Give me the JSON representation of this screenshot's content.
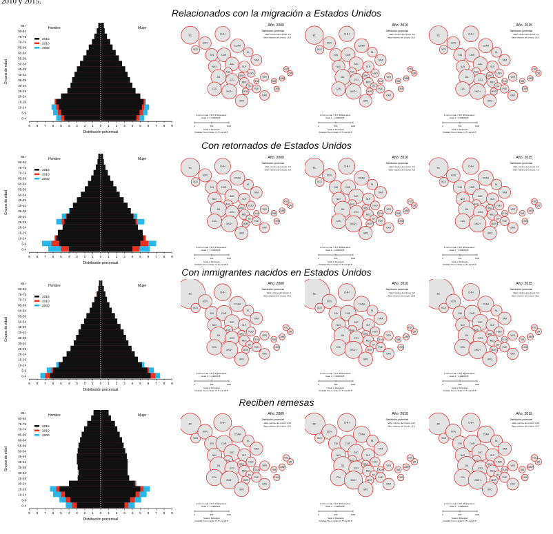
{
  "page": {
    "top_text": "2010 y 2015."
  },
  "sections": [
    {
      "title": "Relacionados con la migración a Estados Unidos"
    },
    {
      "title": "Con retornados de Estados Unidos"
    },
    {
      "title": "Con inmigrantes nacidos en Estados Unidos"
    },
    {
      "title": "Reciben remesas"
    }
  ],
  "pyramid": {
    "hombre": "Hombre",
    "mujer": "Mujer",
    "ylabel": "Grupos de edad",
    "xlabel": "Distribución porcentual",
    "ages": [
      "0-4",
      "5-9",
      "10-14",
      "15-19",
      "20-24",
      "25-29",
      "30-34",
      "35-39",
      "40-44",
      "45-49",
      "50-54",
      "55-59",
      "60-64",
      "65-69",
      "70-74",
      "75-79",
      "80-84",
      "85+"
    ],
    "xticks": [
      "9",
      "8",
      "7",
      "6",
      "5",
      "4",
      "3",
      "2",
      "1",
      "0",
      "1",
      "2",
      "3",
      "4",
      "5",
      "6",
      "7",
      "8",
      "9"
    ],
    "legend": [
      {
        "name": "2015",
        "color": "#111111"
      },
      {
        "name": "2010",
        "color": "#e8321f"
      },
      {
        "name": "2000",
        "color": "#29b6e8"
      }
    ]
  },
  "chart_data": [
    {
      "type": "bar",
      "title": "Relacionados con la migración a Estados Unidos",
      "categories": [
        "0-4",
        "5-9",
        "10-14",
        "15-19",
        "20-24",
        "25-29",
        "30-34",
        "35-39",
        "40-44",
        "45-49",
        "50-54",
        "55-59",
        "60-64",
        "65-69",
        "70-74",
        "75-79",
        "80-84",
        "85+"
      ],
      "series": [
        {
          "name": "2015",
          "men": [
            4.6,
            5.0,
            5.3,
            5.6,
            5.0,
            4.2,
            3.8,
            3.6,
            3.3,
            3.0,
            2.6,
            2.2,
            1.8,
            1.5,
            1.1,
            0.8,
            0.5,
            0.3
          ],
          "women": [
            4.5,
            4.9,
            5.2,
            5.4,
            5.0,
            4.4,
            4.0,
            3.7,
            3.4,
            3.1,
            2.7,
            2.3,
            1.9,
            1.5,
            1.2,
            0.8,
            0.5,
            0.4
          ]
        },
        {
          "name": "2010",
          "men": [
            5.0,
            5.4,
            5.6,
            5.8,
            4.9,
            4.0,
            3.6,
            3.4,
            3.1,
            2.8,
            2.4,
            2.0,
            1.6,
            1.3,
            1.0,
            0.7,
            0.4,
            0.3
          ],
          "women": [
            4.9,
            5.3,
            5.5,
            5.6,
            5.0,
            4.3,
            3.8,
            3.5,
            3.2,
            2.9,
            2.5,
            2.1,
            1.7,
            1.3,
            1.0,
            0.7,
            0.5,
            0.3
          ]
        },
        {
          "name": "2000",
          "men": [
            5.6,
            6.0,
            6.2,
            5.8,
            4.6,
            3.6,
            3.2,
            3.0,
            2.7,
            2.4,
            2.1,
            1.7,
            1.4,
            1.1,
            0.8,
            0.6,
            0.4,
            0.2
          ],
          "women": [
            5.5,
            5.9,
            6.1,
            5.7,
            4.8,
            3.9,
            3.4,
            3.1,
            2.8,
            2.5,
            2.1,
            1.8,
            1.4,
            1.1,
            0.9,
            0.6,
            0.4,
            0.3
          ]
        }
      ]
    },
    {
      "type": "bar",
      "title": "Con retornados de Estados Unidos",
      "categories": [
        "0-4",
        "5-9",
        "10-14",
        "15-19",
        "20-24",
        "25-29",
        "30-34",
        "35-39",
        "40-44",
        "45-49",
        "50-54",
        "55-59",
        "60-64",
        "65-69",
        "70-74",
        "75-79",
        "80-84",
        "85+"
      ],
      "series": [
        {
          "name": "2015",
          "men": [
            4.0,
            5.2,
            5.6,
            5.4,
            4.8,
            4.6,
            4.3,
            3.9,
            3.5,
            3.0,
            2.5,
            2.0,
            1.6,
            1.2,
            0.9,
            0.6,
            0.4,
            0.3
          ],
          "women": [
            4.0,
            5.0,
            5.4,
            5.3,
            4.7,
            4.4,
            4.1,
            3.8,
            3.4,
            2.9,
            2.4,
            2.0,
            1.6,
            1.2,
            0.9,
            0.6,
            0.4,
            0.3
          ]
        },
        {
          "name": "2010",
          "men": [
            5.0,
            6.2,
            5.8,
            5.2,
            4.6,
            4.9,
            4.4,
            3.8,
            3.3,
            2.8,
            2.3,
            1.9,
            1.5,
            1.1,
            0.8,
            0.6,
            0.4,
            0.2
          ],
          "women": [
            4.9,
            6.0,
            5.7,
            5.1,
            4.5,
            4.6,
            4.2,
            3.6,
            3.2,
            2.7,
            2.3,
            1.8,
            1.4,
            1.1,
            0.8,
            0.5,
            0.4,
            0.2
          ]
        },
        {
          "name": "2000",
          "men": [
            6.6,
            7.4,
            5.8,
            4.9,
            4.4,
            5.6,
            4.9,
            4.0,
            3.3,
            2.7,
            2.2,
            1.8,
            1.4,
            1.0,
            0.7,
            0.5,
            0.3,
            0.2
          ],
          "women": [
            6.2,
            7.0,
            5.6,
            4.8,
            4.6,
            5.5,
            4.6,
            3.8,
            3.1,
            2.6,
            2.1,
            1.7,
            1.3,
            1.0,
            0.7,
            0.5,
            0.3,
            0.2
          ]
        }
      ]
    },
    {
      "type": "bar",
      "title": "Con inmigrantes nacidos en Estados Unidos",
      "categories": [
        "0-4",
        "5-9",
        "10-14",
        "15-19",
        "20-24",
        "25-29",
        "30-34",
        "35-39",
        "40-44",
        "45-49",
        "50-54",
        "55-59",
        "60-64",
        "65-69",
        "70-74",
        "75-79",
        "80-84",
        "85+"
      ],
      "series": [
        {
          "name": "2015",
          "men": [
            6.4,
            6.0,
            5.3,
            4.8,
            4.3,
            3.8,
            3.4,
            3.1,
            2.8,
            2.5,
            2.1,
            1.8,
            1.4,
            1.1,
            0.8,
            0.5,
            0.3,
            0.2
          ],
          "women": [
            6.3,
            5.9,
            5.2,
            4.7,
            4.3,
            3.9,
            3.5,
            3.2,
            2.9,
            2.5,
            2.1,
            1.8,
            1.4,
            1.1,
            0.8,
            0.6,
            0.4,
            0.2
          ]
        },
        {
          "name": "2010",
          "men": [
            7.0,
            6.2,
            5.1,
            4.5,
            4.0,
            3.5,
            3.1,
            2.8,
            2.5,
            2.2,
            1.9,
            1.6,
            1.2,
            0.9,
            0.7,
            0.5,
            0.3,
            0.2
          ],
          "women": [
            6.9,
            6.1,
            5.0,
            4.5,
            4.0,
            3.6,
            3.2,
            2.9,
            2.6,
            2.3,
            1.9,
            1.6,
            1.3,
            1.0,
            0.7,
            0.5,
            0.3,
            0.2
          ]
        },
        {
          "name": "2000",
          "men": [
            7.6,
            6.8,
            5.6,
            4.6,
            3.8,
            3.3,
            2.9,
            2.6,
            2.3,
            2.0,
            1.7,
            1.4,
            1.1,
            0.8,
            0.6,
            0.4,
            0.3,
            0.2
          ],
          "women": [
            7.5,
            6.7,
            5.5,
            4.6,
            3.9,
            3.4,
            3.0,
            2.7,
            2.4,
            2.1,
            1.8,
            1.5,
            1.1,
            0.8,
            0.6,
            0.4,
            0.3,
            0.2
          ]
        }
      ]
    },
    {
      "type": "bar",
      "title": "Reciben remesas",
      "categories": [
        "0-4",
        "5-9",
        "10-14",
        "15-19",
        "20-24",
        "25-29",
        "30-34",
        "35-39",
        "40-44",
        "45-49",
        "50-54",
        "55-59",
        "60-64",
        "65-69",
        "70-74",
        "75-79",
        "80-84",
        "85+"
      ],
      "series": [
        {
          "name": "2015",
          "men": [
            3.0,
            3.8,
            4.5,
            5.2,
            4.0,
            2.9,
            2.8,
            2.9,
            3.0,
            3.0,
            2.9,
            2.8,
            2.6,
            2.4,
            2.1,
            1.7,
            1.2,
            0.9
          ],
          "women": [
            3.0,
            3.7,
            4.4,
            5.0,
            4.3,
            3.6,
            3.4,
            3.4,
            3.4,
            3.3,
            3.1,
            2.9,
            2.7,
            2.4,
            2.1,
            1.8,
            1.3,
            1.0
          ]
        },
        {
          "name": "2010",
          "men": [
            3.6,
            4.4,
            5.0,
            5.6,
            4.0,
            2.7,
            2.6,
            2.7,
            2.8,
            2.8,
            2.7,
            2.6,
            2.4,
            2.2,
            1.9,
            1.5,
            1.1,
            0.8
          ],
          "women": [
            3.5,
            4.3,
            4.9,
            5.4,
            4.4,
            3.5,
            3.3,
            3.2,
            3.2,
            3.1,
            2.9,
            2.7,
            2.5,
            2.2,
            1.9,
            1.6,
            1.2,
            0.9
          ]
        },
        {
          "name": "2000",
          "men": [
            4.4,
            5.2,
            6.0,
            6.4,
            3.9,
            2.5,
            2.4,
            2.5,
            2.6,
            2.6,
            2.5,
            2.4,
            2.2,
            2.0,
            1.7,
            1.4,
            1.0,
            0.7
          ],
          "women": [
            4.3,
            5.1,
            5.8,
            6.2,
            4.5,
            3.4,
            3.1,
            3.0,
            3.0,
            2.9,
            2.8,
            2.6,
            2.3,
            2.1,
            1.8,
            1.5,
            1.1,
            0.8
          ]
        }
      ]
    }
  ],
  "map_labels": {
    "year_prefix": "Año:",
    "dist": "Distribución porcentual",
    "vmin": "Valor mínimo del círculo:",
    "vmax": "Valor máximo del círculo:",
    "scale_line1": "1 inch on map = 517.46 kilometers",
    "scale_line2": "Scale 1 : 1:34680125",
    "scale_ticks": [
      "0",
      "500",
      "1000"
    ],
    "scale_unit": "Scale in Kilometers",
    "parallels": "Parallels True to Scale: 17.5° and 29.5°"
  },
  "maps": [
    [
      {
        "year": "2000",
        "min": "0.1",
        "max": "15.8"
      },
      {
        "year": "2010",
        "min": "0.2",
        "max": "16.0"
      },
      {
        "year": "2015",
        "min": "0.1",
        "max": "16.3"
      }
    ],
    [
      {
        "year": "2000",
        "min": "0.1",
        "max": "6.0"
      },
      {
        "year": "2010",
        "min": "0.1",
        "max": "6.9"
      },
      {
        "year": "2015",
        "min": "0.1",
        "max": "7.2"
      }
    ],
    [
      {
        "year": "2000",
        "min": "0",
        "max": "24.2"
      },
      {
        "year": "2010",
        "min": "0.2",
        "max": "19.8"
      },
      {
        "year": "2015",
        "min": "0.2",
        "max": "18.1"
      }
    ],
    [
      {
        "year": "2000",
        "min": "0.05",
        "max": "13.0"
      },
      {
        "year": "2010",
        "min": "0.07",
        "max": "11.1"
      },
      {
        "year": "2015",
        "min": "0.06",
        "max": "10.2"
      }
    ]
  ],
  "states": [
    "BC",
    "BCS",
    "SON",
    "CHIH",
    "COAH",
    "NL",
    "TAM",
    "SIN",
    "DUR",
    "ZAC",
    "SLP",
    "NAY",
    "AGS",
    "JAL",
    "GTO",
    "QRO",
    "HGO",
    "COL",
    "MICH",
    "MEX",
    "DF",
    "TLAX",
    "VER",
    "MOR",
    "PUE",
    "GRO",
    "OAX",
    "TAB",
    "CAMP",
    "QR",
    "YUC",
    "CHIS"
  ]
}
